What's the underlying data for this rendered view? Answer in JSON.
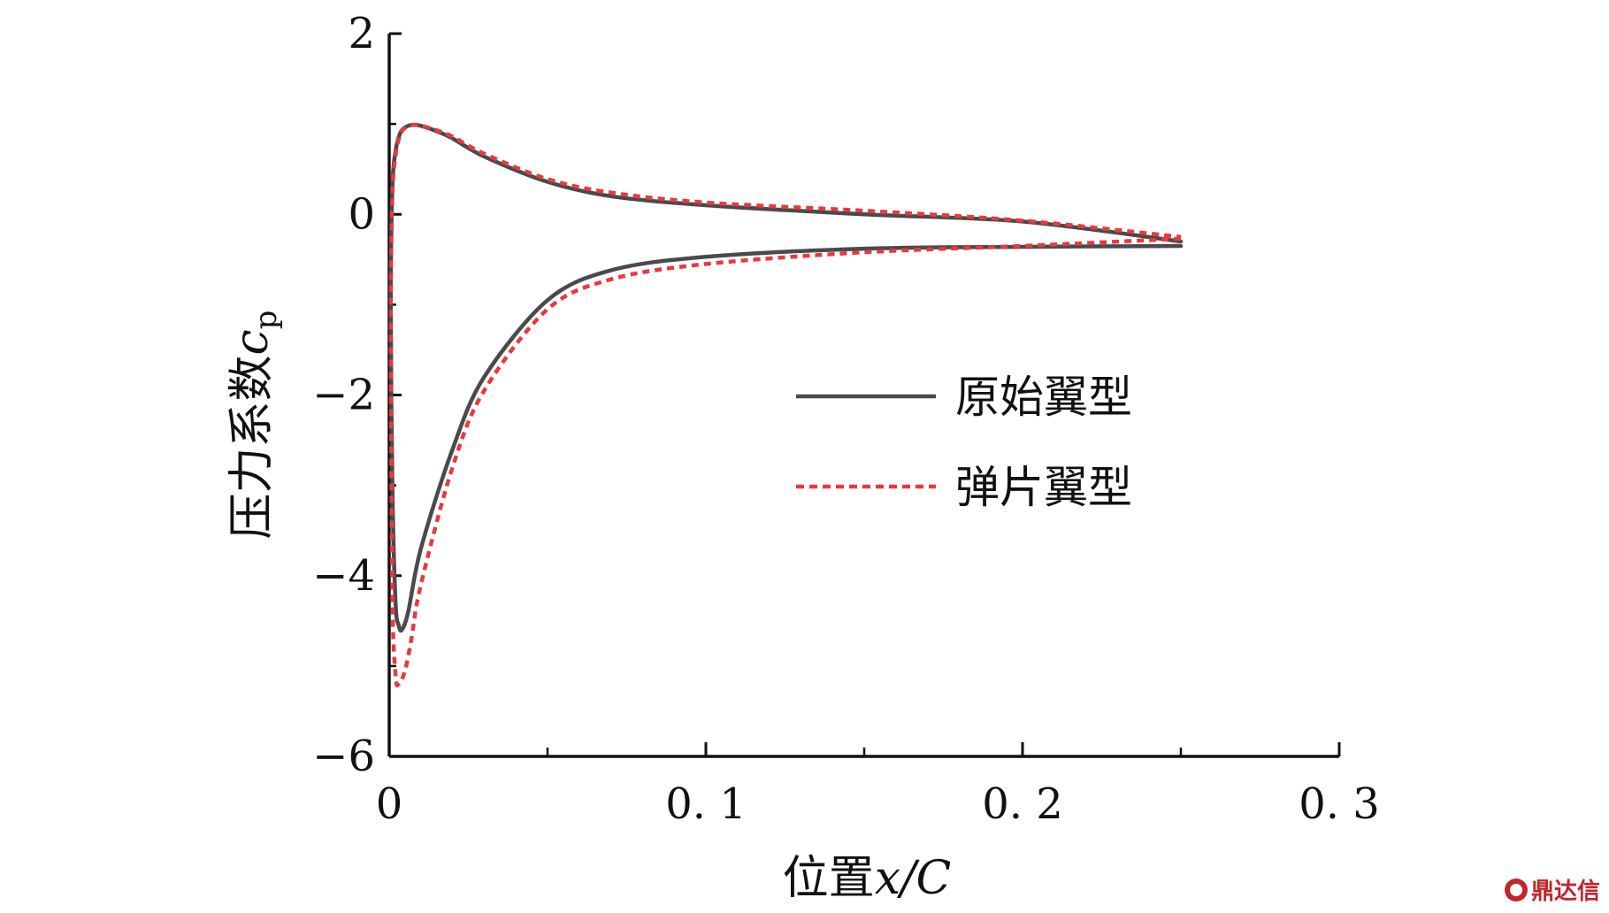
{
  "chart_data": {
    "type": "line",
    "xlabel_cn": "位置",
    "xlabel_var": "x/C",
    "ylabel_cn": "压力系数",
    "ylabel_var": "c",
    "ylabel_sub": "p",
    "xlim": [
      0,
      0.3
    ],
    "ylim": [
      -6,
      2
    ],
    "xticks": [
      0,
      0.1,
      0.2,
      0.3
    ],
    "xtick_labels": [
      "0",
      "0. 1",
      "0. 2",
      "0. 3"
    ],
    "yticks": [
      2,
      0,
      -2,
      -4,
      -6
    ],
    "ytick_labels": [
      "2",
      "0",
      "−2",
      "−4",
      "−6"
    ],
    "grid": false,
    "legend_position": "center-right",
    "series": [
      {
        "name": "原始翼型",
        "style": "solid",
        "color": "#4a4a4a",
        "x": [
          0.25,
          0.2,
          0.15,
          0.1,
          0.07,
          0.05,
          0.03,
          0.02,
          0.01,
          0.006,
          0.004,
          0.003,
          0.002,
          0.001,
          0.0005,
          0.001,
          0.002,
          0.003,
          0.004,
          0.006,
          0.008,
          0.01,
          0.015,
          0.02,
          0.03,
          0.05,
          0.07,
          0.1,
          0.15,
          0.2,
          0.25
        ],
        "y": [
          -0.35,
          -0.36,
          -0.38,
          -0.47,
          -0.62,
          -0.95,
          -1.8,
          -2.6,
          -3.7,
          -4.4,
          -4.6,
          -4.55,
          -4.3,
          -3.0,
          -1.0,
          0.3,
          0.7,
          0.85,
          0.93,
          0.98,
          0.99,
          0.98,
          0.92,
          0.84,
          0.64,
          0.36,
          0.2,
          0.1,
          0.0,
          -0.08,
          -0.3
        ]
      },
      {
        "name": "弹片翼型",
        "style": "dashed",
        "color": "#e8393f",
        "x": [
          0.25,
          0.2,
          0.15,
          0.1,
          0.07,
          0.05,
          0.03,
          0.02,
          0.01,
          0.007,
          0.005,
          0.003,
          0.002,
          0.001,
          0.0005,
          0.001,
          0.002,
          0.003,
          0.004,
          0.006,
          0.008,
          0.01,
          0.015,
          0.02,
          0.03,
          0.05,
          0.07,
          0.1,
          0.15,
          0.2,
          0.25
        ],
        "y": [
          -0.27,
          -0.35,
          -0.42,
          -0.55,
          -0.72,
          -1.05,
          -1.95,
          -2.8,
          -4.1,
          -4.7,
          -5.05,
          -5.2,
          -5.1,
          -4.2,
          -1.2,
          0.2,
          0.65,
          0.83,
          0.92,
          0.98,
          0.99,
          0.98,
          0.93,
          0.86,
          0.67,
          0.39,
          0.24,
          0.13,
          0.04,
          -0.07,
          -0.25
        ]
      }
    ]
  },
  "watermark": {
    "text": "鼎达信"
  }
}
